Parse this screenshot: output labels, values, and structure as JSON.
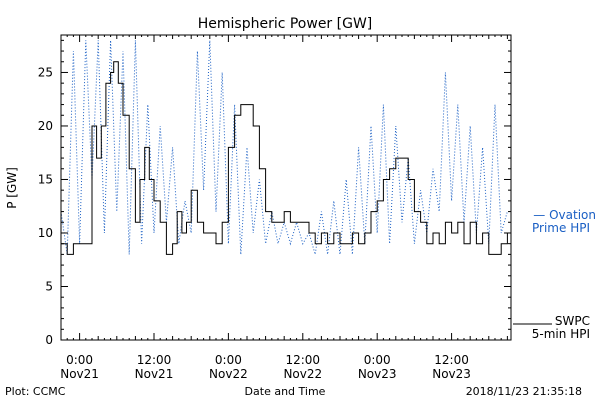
{
  "chart_data": {
    "type": "line",
    "title": "Hemispheric Power [GW]",
    "ylabel": "P [GW]",
    "xlabel": "Date and Time",
    "ylim": [
      0,
      28.5
    ],
    "xlim": [
      "2018-11-20 21:00",
      "2018-11-23 21:35"
    ],
    "yticks": [
      0,
      5,
      10,
      15,
      20,
      25
    ],
    "xticks": [
      {
        "x": "2018-11-21 00:00",
        "time": "0:00",
        "date": "Nov21"
      },
      {
        "x": "2018-11-21 12:00",
        "time": "12:00",
        "date": "Nov21"
      },
      {
        "x": "2018-11-22 00:00",
        "time": "0:00",
        "date": "Nov22"
      },
      {
        "x": "2018-11-22 12:00",
        "time": "12:00",
        "date": "Nov22"
      },
      {
        "x": "2018-11-23 00:00",
        "time": "0:00",
        "date": "Nov23"
      },
      {
        "x": "2018-11-23 12:00",
        "time": "12:00",
        "date": "Nov23"
      }
    ],
    "grid": false,
    "legend_position": "right",
    "series": [
      {
        "name": "SWPC 5-min HPI",
        "legend_lines": [
          "SWPC",
          "5-min HPI"
        ],
        "color": "#000000",
        "style": "solid",
        "points": [
          [
            "2018-11-20 21:00",
            9
          ],
          [
            "2018-11-20 22:00",
            8
          ],
          [
            "2018-11-20 23:00",
            9
          ],
          [
            "2018-11-21 01:00",
            9
          ],
          [
            "2018-11-21 02:00",
            20
          ],
          [
            "2018-11-21 02:45",
            17
          ],
          [
            "2018-11-21 03:30",
            20
          ],
          [
            "2018-11-21 04:15",
            24
          ],
          [
            "2018-11-21 05:00",
            25
          ],
          [
            "2018-11-21 05:30",
            26
          ],
          [
            "2018-11-21 06:15",
            24
          ],
          [
            "2018-11-21 07:00",
            21
          ],
          [
            "2018-11-21 08:00",
            16
          ],
          [
            "2018-11-21 09:00",
            11
          ],
          [
            "2018-11-21 09:45",
            15
          ],
          [
            "2018-11-21 10:30",
            18
          ],
          [
            "2018-11-21 11:15",
            15
          ],
          [
            "2018-11-21 12:00",
            13
          ],
          [
            "2018-11-21 13:00",
            11
          ],
          [
            "2018-11-21 14:00",
            8
          ],
          [
            "2018-11-21 15:00",
            9
          ],
          [
            "2018-11-21 15:45",
            12
          ],
          [
            "2018-11-21 16:30",
            10
          ],
          [
            "2018-11-21 17:15",
            11
          ],
          [
            "2018-11-21 18:00",
            14
          ],
          [
            "2018-11-21 19:00",
            11
          ],
          [
            "2018-11-21 20:00",
            10
          ],
          [
            "2018-11-21 21:00",
            10
          ],
          [
            "2018-11-21 22:00",
            9
          ],
          [
            "2018-11-21 23:00",
            11
          ],
          [
            "2018-11-22 00:00",
            18
          ],
          [
            "2018-11-22 01:00",
            21
          ],
          [
            "2018-11-22 02:00",
            22
          ],
          [
            "2018-11-22 03:00",
            22
          ],
          [
            "2018-11-22 04:00",
            20
          ],
          [
            "2018-11-22 05:00",
            16
          ],
          [
            "2018-11-22 06:00",
            12
          ],
          [
            "2018-11-22 07:00",
            11
          ],
          [
            "2018-11-22 08:00",
            11
          ],
          [
            "2018-11-22 09:00",
            12
          ],
          [
            "2018-11-22 10:00",
            11
          ],
          [
            "2018-11-22 11:00",
            11
          ],
          [
            "2018-11-22 12:00",
            11
          ],
          [
            "2018-11-22 13:00",
            10
          ],
          [
            "2018-11-22 14:00",
            9
          ],
          [
            "2018-11-22 15:00",
            10
          ],
          [
            "2018-11-22 16:00",
            9
          ],
          [
            "2018-11-22 17:00",
            10
          ],
          [
            "2018-11-22 18:00",
            9
          ],
          [
            "2018-11-22 19:00",
            9
          ],
          [
            "2018-11-22 20:00",
            10
          ],
          [
            "2018-11-22 21:00",
            9
          ],
          [
            "2018-11-22 22:00",
            10
          ],
          [
            "2018-11-22 23:00",
            12
          ],
          [
            "2018-11-23 00:00",
            13
          ],
          [
            "2018-11-23 01:00",
            15
          ],
          [
            "2018-11-23 02:00",
            16
          ],
          [
            "2018-11-23 03:00",
            17
          ],
          [
            "2018-11-23 04:00",
            17
          ],
          [
            "2018-11-23 05:00",
            15
          ],
          [
            "2018-11-23 06:00",
            12
          ],
          [
            "2018-11-23 07:00",
            11
          ],
          [
            "2018-11-23 08:00",
            9
          ],
          [
            "2018-11-23 09:00",
            10
          ],
          [
            "2018-11-23 10:00",
            9
          ],
          [
            "2018-11-23 11:00",
            11
          ],
          [
            "2018-11-23 12:00",
            10
          ],
          [
            "2018-11-23 13:00",
            11
          ],
          [
            "2018-11-23 14:00",
            9
          ],
          [
            "2018-11-23 15:00",
            11
          ],
          [
            "2018-11-23 16:00",
            9
          ],
          [
            "2018-11-23 17:00",
            10
          ],
          [
            "2018-11-23 18:00",
            8
          ],
          [
            "2018-11-23 19:00",
            8
          ],
          [
            "2018-11-23 20:00",
            9
          ],
          [
            "2018-11-23 21:00",
            10
          ]
        ]
      },
      {
        "name": "Ovation Prime HPI",
        "legend_lines": [
          "— Ovation",
          "Prime HPI"
        ],
        "color": "#1a5fc4",
        "style": "dotted",
        "points": [
          [
            "2018-11-20 21:00",
            12
          ],
          [
            "2018-11-20 22:00",
            8
          ],
          [
            "2018-11-20 23:00",
            27
          ],
          [
            "2018-11-21 00:00",
            9
          ],
          [
            "2018-11-21 01:00",
            28
          ],
          [
            "2018-11-21 02:00",
            15
          ],
          [
            "2018-11-21 03:00",
            28
          ],
          [
            "2018-11-21 04:00",
            10
          ],
          [
            "2018-11-21 05:00",
            28
          ],
          [
            "2018-11-21 06:00",
            12
          ],
          [
            "2018-11-21 07:00",
            27
          ],
          [
            "2018-11-21 08:00",
            8
          ],
          [
            "2018-11-21 09:00",
            28
          ],
          [
            "2018-11-21 10:00",
            9
          ],
          [
            "2018-11-21 11:00",
            22
          ],
          [
            "2018-11-21 12:00",
            10
          ],
          [
            "2018-11-21 13:00",
            20
          ],
          [
            "2018-11-21 14:00",
            11
          ],
          [
            "2018-11-21 15:00",
            18
          ],
          [
            "2018-11-21 16:00",
            9
          ],
          [
            "2018-11-21 17:00",
            13
          ],
          [
            "2018-11-21 18:00",
            10
          ],
          [
            "2018-11-21 19:00",
            27
          ],
          [
            "2018-11-21 20:00",
            14
          ],
          [
            "2018-11-21 21:00",
            28
          ],
          [
            "2018-11-21 22:00",
            12
          ],
          [
            "2018-11-21 23:00",
            25
          ],
          [
            "2018-11-22 00:00",
            9
          ],
          [
            "2018-11-22 01:00",
            22
          ],
          [
            "2018-11-22 02:00",
            8
          ],
          [
            "2018-11-22 03:00",
            18
          ],
          [
            "2018-11-22 04:00",
            10
          ],
          [
            "2018-11-22 05:00",
            15
          ],
          [
            "2018-11-22 06:00",
            9
          ],
          [
            "2018-11-22 07:00",
            12
          ],
          [
            "2018-11-22 08:00",
            9
          ],
          [
            "2018-11-22 09:00",
            11
          ],
          [
            "2018-11-22 10:00",
            9
          ],
          [
            "2018-11-22 11:00",
            11
          ],
          [
            "2018-11-22 12:00",
            9
          ],
          [
            "2018-11-22 13:00",
            10
          ],
          [
            "2018-11-22 14:00",
            8
          ],
          [
            "2018-11-22 15:00",
            12
          ],
          [
            "2018-11-22 16:00",
            8
          ],
          [
            "2018-11-22 17:00",
            13
          ],
          [
            "2018-11-22 18:00",
            8
          ],
          [
            "2018-11-22 19:00",
            15
          ],
          [
            "2018-11-22 20:00",
            8
          ],
          [
            "2018-11-22 21:00",
            18
          ],
          [
            "2018-11-22 22:00",
            9
          ],
          [
            "2018-11-22 23:00",
            20
          ],
          [
            "2018-11-23 00:00",
            10
          ],
          [
            "2018-11-23 01:00",
            22
          ],
          [
            "2018-11-23 02:00",
            9
          ],
          [
            "2018-11-23 03:00",
            20
          ],
          [
            "2018-11-23 04:00",
            11
          ],
          [
            "2018-11-23 05:00",
            17
          ],
          [
            "2018-11-23 06:00",
            9
          ],
          [
            "2018-11-23 07:00",
            14
          ],
          [
            "2018-11-23 08:00",
            10
          ],
          [
            "2018-11-23 09:00",
            16
          ],
          [
            "2018-11-23 10:00",
            12
          ],
          [
            "2018-11-23 11:00",
            25
          ],
          [
            "2018-11-23 12:00",
            13
          ],
          [
            "2018-11-23 13:00",
            22
          ],
          [
            "2018-11-23 14:00",
            11
          ],
          [
            "2018-11-23 15:00",
            20
          ],
          [
            "2018-11-23 16:00",
            10
          ],
          [
            "2018-11-23 17:00",
            18
          ],
          [
            "2018-11-23 18:00",
            9
          ],
          [
            "2018-11-23 19:00",
            22
          ],
          [
            "2018-11-23 20:00",
            10
          ],
          [
            "2018-11-23 21:00",
            12
          ]
        ]
      }
    ]
  },
  "footer": {
    "left": "Plot: CCMC",
    "center": "Date and Time",
    "right": "2018/11/23 21:35:18"
  }
}
